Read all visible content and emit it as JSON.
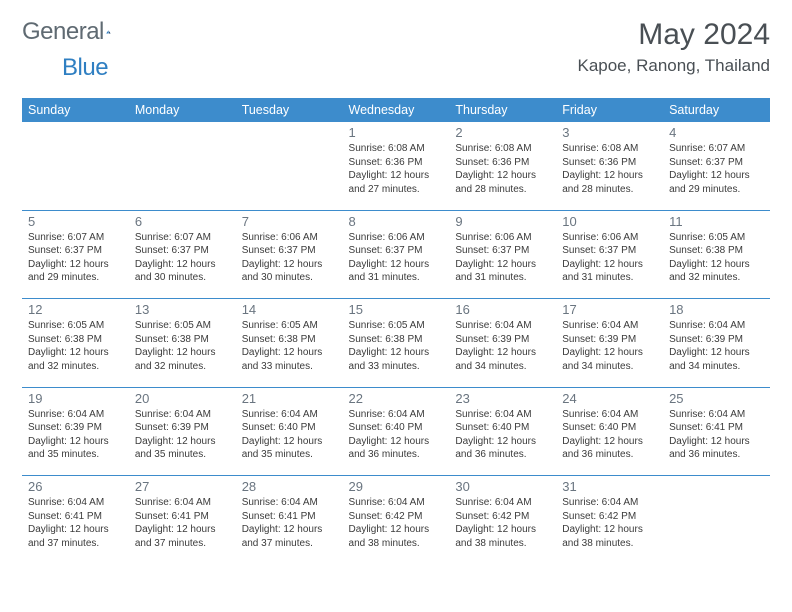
{
  "brand": {
    "text1": "General",
    "text2": "Blue"
  },
  "title": "May 2024",
  "location": "Kapoe, Ranong, Thailand",
  "colors": {
    "header_bg": "#3d8ccc",
    "header_text": "#ffffff",
    "brand_gray": "#5f6a72",
    "brand_blue": "#2f7fc2",
    "title_color": "#494f54",
    "daynum_color": "#6a7580",
    "body_text": "#3b3b3b",
    "rule": "#3d8ccc",
    "page_bg": "#ffffff"
  },
  "typography": {
    "title_fontsize": 30,
    "location_fontsize": 17,
    "dow_fontsize": 12.5,
    "daynum_fontsize": 13,
    "body_fontsize": 10
  },
  "dow": [
    "Sunday",
    "Monday",
    "Tuesday",
    "Wednesday",
    "Thursday",
    "Friday",
    "Saturday"
  ],
  "weeks": [
    [
      {
        "n": "",
        "sr": "",
        "ss": "",
        "dl": ""
      },
      {
        "n": "",
        "sr": "",
        "ss": "",
        "dl": ""
      },
      {
        "n": "",
        "sr": "",
        "ss": "",
        "dl": ""
      },
      {
        "n": "1",
        "sr": "Sunrise: 6:08 AM",
        "ss": "Sunset: 6:36 PM",
        "dl": "Daylight: 12 hours and 27 minutes."
      },
      {
        "n": "2",
        "sr": "Sunrise: 6:08 AM",
        "ss": "Sunset: 6:36 PM",
        "dl": "Daylight: 12 hours and 28 minutes."
      },
      {
        "n": "3",
        "sr": "Sunrise: 6:08 AM",
        "ss": "Sunset: 6:36 PM",
        "dl": "Daylight: 12 hours and 28 minutes."
      },
      {
        "n": "4",
        "sr": "Sunrise: 6:07 AM",
        "ss": "Sunset: 6:37 PM",
        "dl": "Daylight: 12 hours and 29 minutes."
      }
    ],
    [
      {
        "n": "5",
        "sr": "Sunrise: 6:07 AM",
        "ss": "Sunset: 6:37 PM",
        "dl": "Daylight: 12 hours and 29 minutes."
      },
      {
        "n": "6",
        "sr": "Sunrise: 6:07 AM",
        "ss": "Sunset: 6:37 PM",
        "dl": "Daylight: 12 hours and 30 minutes."
      },
      {
        "n": "7",
        "sr": "Sunrise: 6:06 AM",
        "ss": "Sunset: 6:37 PM",
        "dl": "Daylight: 12 hours and 30 minutes."
      },
      {
        "n": "8",
        "sr": "Sunrise: 6:06 AM",
        "ss": "Sunset: 6:37 PM",
        "dl": "Daylight: 12 hours and 31 minutes."
      },
      {
        "n": "9",
        "sr": "Sunrise: 6:06 AM",
        "ss": "Sunset: 6:37 PM",
        "dl": "Daylight: 12 hours and 31 minutes."
      },
      {
        "n": "10",
        "sr": "Sunrise: 6:06 AM",
        "ss": "Sunset: 6:37 PM",
        "dl": "Daylight: 12 hours and 31 minutes."
      },
      {
        "n": "11",
        "sr": "Sunrise: 6:05 AM",
        "ss": "Sunset: 6:38 PM",
        "dl": "Daylight: 12 hours and 32 minutes."
      }
    ],
    [
      {
        "n": "12",
        "sr": "Sunrise: 6:05 AM",
        "ss": "Sunset: 6:38 PM",
        "dl": "Daylight: 12 hours and 32 minutes."
      },
      {
        "n": "13",
        "sr": "Sunrise: 6:05 AM",
        "ss": "Sunset: 6:38 PM",
        "dl": "Daylight: 12 hours and 32 minutes."
      },
      {
        "n": "14",
        "sr": "Sunrise: 6:05 AM",
        "ss": "Sunset: 6:38 PM",
        "dl": "Daylight: 12 hours and 33 minutes."
      },
      {
        "n": "15",
        "sr": "Sunrise: 6:05 AM",
        "ss": "Sunset: 6:38 PM",
        "dl": "Daylight: 12 hours and 33 minutes."
      },
      {
        "n": "16",
        "sr": "Sunrise: 6:04 AM",
        "ss": "Sunset: 6:39 PM",
        "dl": "Daylight: 12 hours and 34 minutes."
      },
      {
        "n": "17",
        "sr": "Sunrise: 6:04 AM",
        "ss": "Sunset: 6:39 PM",
        "dl": "Daylight: 12 hours and 34 minutes."
      },
      {
        "n": "18",
        "sr": "Sunrise: 6:04 AM",
        "ss": "Sunset: 6:39 PM",
        "dl": "Daylight: 12 hours and 34 minutes."
      }
    ],
    [
      {
        "n": "19",
        "sr": "Sunrise: 6:04 AM",
        "ss": "Sunset: 6:39 PM",
        "dl": "Daylight: 12 hours and 35 minutes."
      },
      {
        "n": "20",
        "sr": "Sunrise: 6:04 AM",
        "ss": "Sunset: 6:39 PM",
        "dl": "Daylight: 12 hours and 35 minutes."
      },
      {
        "n": "21",
        "sr": "Sunrise: 6:04 AM",
        "ss": "Sunset: 6:40 PM",
        "dl": "Daylight: 12 hours and 35 minutes."
      },
      {
        "n": "22",
        "sr": "Sunrise: 6:04 AM",
        "ss": "Sunset: 6:40 PM",
        "dl": "Daylight: 12 hours and 36 minutes."
      },
      {
        "n": "23",
        "sr": "Sunrise: 6:04 AM",
        "ss": "Sunset: 6:40 PM",
        "dl": "Daylight: 12 hours and 36 minutes."
      },
      {
        "n": "24",
        "sr": "Sunrise: 6:04 AM",
        "ss": "Sunset: 6:40 PM",
        "dl": "Daylight: 12 hours and 36 minutes."
      },
      {
        "n": "25",
        "sr": "Sunrise: 6:04 AM",
        "ss": "Sunset: 6:41 PM",
        "dl": "Daylight: 12 hours and 36 minutes."
      }
    ],
    [
      {
        "n": "26",
        "sr": "Sunrise: 6:04 AM",
        "ss": "Sunset: 6:41 PM",
        "dl": "Daylight: 12 hours and 37 minutes."
      },
      {
        "n": "27",
        "sr": "Sunrise: 6:04 AM",
        "ss": "Sunset: 6:41 PM",
        "dl": "Daylight: 12 hours and 37 minutes."
      },
      {
        "n": "28",
        "sr": "Sunrise: 6:04 AM",
        "ss": "Sunset: 6:41 PM",
        "dl": "Daylight: 12 hours and 37 minutes."
      },
      {
        "n": "29",
        "sr": "Sunrise: 6:04 AM",
        "ss": "Sunset: 6:42 PM",
        "dl": "Daylight: 12 hours and 38 minutes."
      },
      {
        "n": "30",
        "sr": "Sunrise: 6:04 AM",
        "ss": "Sunset: 6:42 PM",
        "dl": "Daylight: 12 hours and 38 minutes."
      },
      {
        "n": "31",
        "sr": "Sunrise: 6:04 AM",
        "ss": "Sunset: 6:42 PM",
        "dl": "Daylight: 12 hours and 38 minutes."
      },
      {
        "n": "",
        "sr": "",
        "ss": "",
        "dl": ""
      }
    ]
  ]
}
